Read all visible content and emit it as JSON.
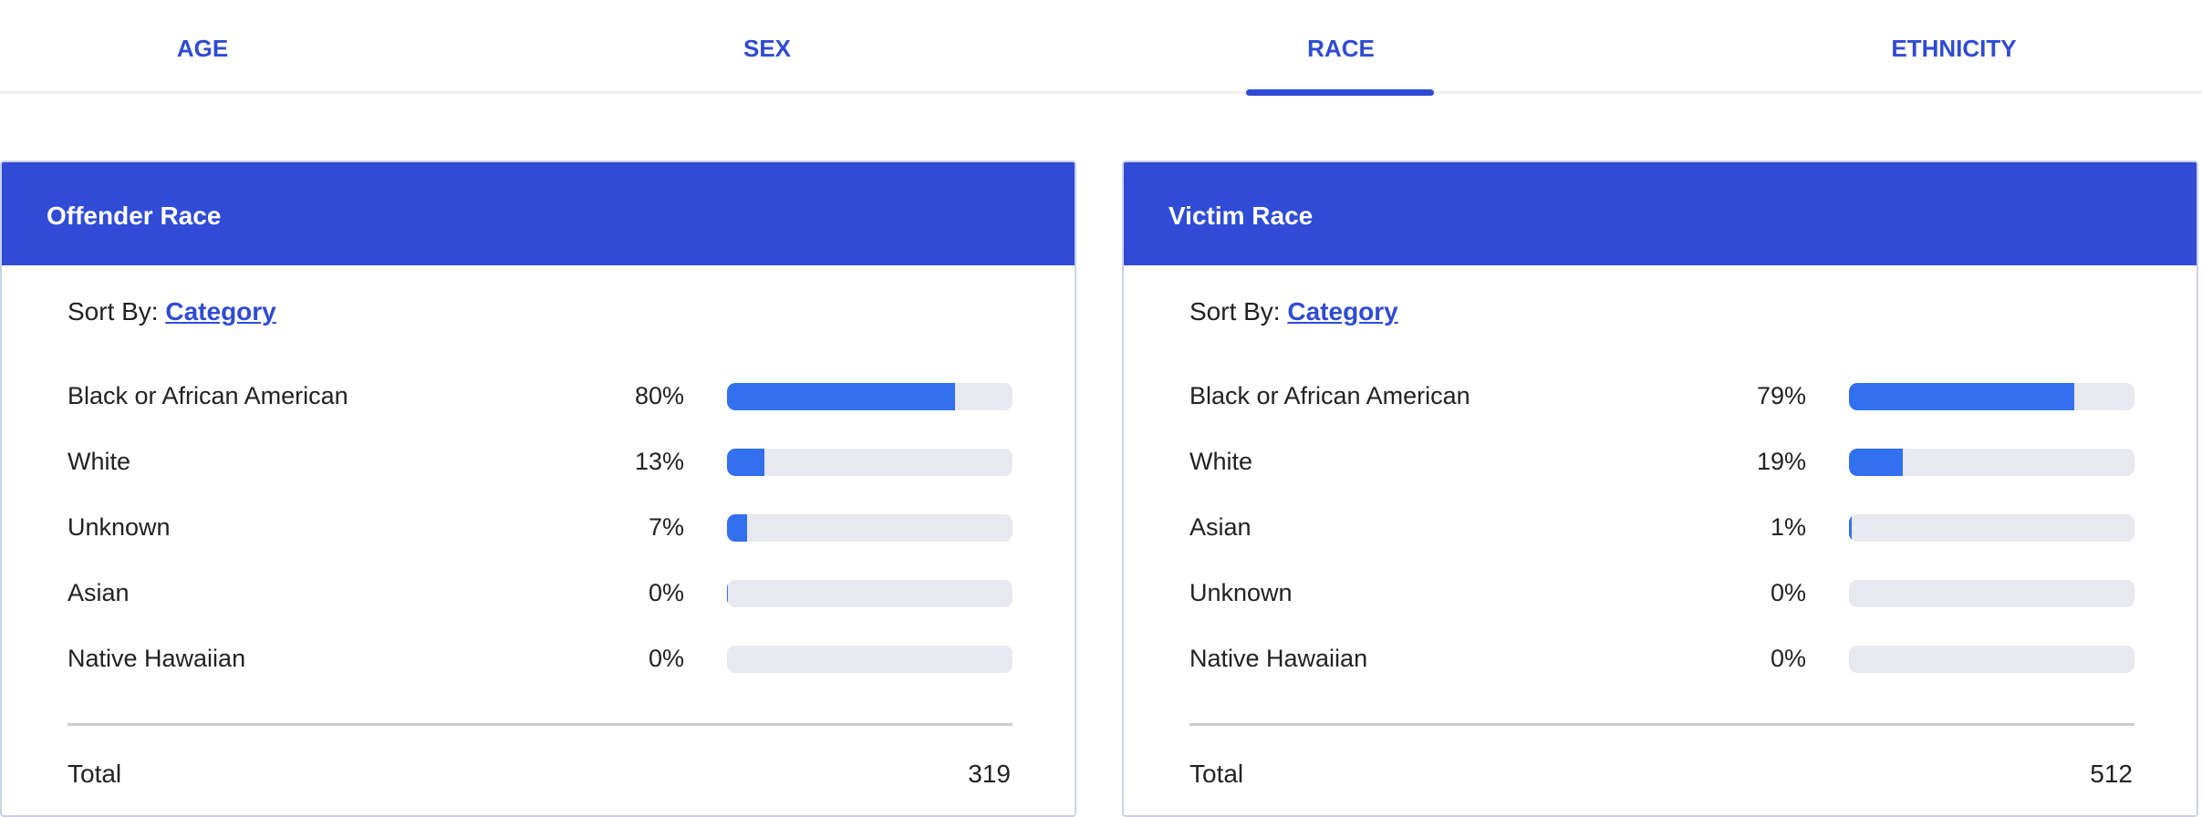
{
  "tabs": [
    {
      "label": "AGE"
    },
    {
      "label": "SEX"
    },
    {
      "label": "RACE",
      "active": true
    },
    {
      "label": "ETHNICITY"
    }
  ],
  "colors": {
    "accent": "#304bd5",
    "bar": "#3370f0",
    "track": "#e8e9ee"
  },
  "cards": [
    {
      "title": "Offender Race",
      "sort_label": "Sort By:",
      "sort_value": "Category",
      "rows": [
        {
          "label": "Black or African American",
          "pct": "80%",
          "value": 80
        },
        {
          "label": "White",
          "pct": "13%",
          "value": 13
        },
        {
          "label": "Unknown",
          "pct": "7%",
          "value": 7
        },
        {
          "label": "Asian",
          "pct": "0%",
          "value": 0.4
        },
        {
          "label": "Native Hawaiian",
          "pct": "0%",
          "value": 0
        }
      ],
      "total_label": "Total",
      "total": "319"
    },
    {
      "title": "Victim Race",
      "sort_label": "Sort By:",
      "sort_value": "Category",
      "rows": [
        {
          "label": "Black or African American",
          "pct": "79%",
          "value": 79
        },
        {
          "label": "White",
          "pct": "19%",
          "value": 19
        },
        {
          "label": "Asian",
          "pct": "1%",
          "value": 1
        },
        {
          "label": "Unknown",
          "pct": "0%",
          "value": 0
        },
        {
          "label": "Native Hawaiian",
          "pct": "0%",
          "value": 0
        }
      ],
      "total_label": "Total",
      "total": "512"
    }
  ]
}
